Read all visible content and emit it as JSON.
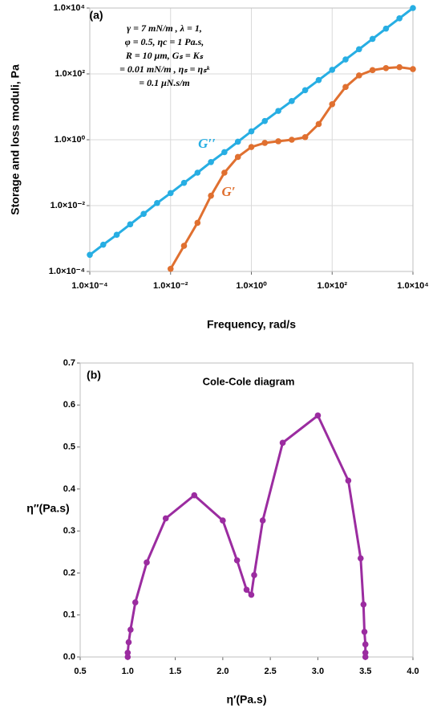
{
  "chart_data": [
    {
      "type": "line",
      "label": "(a)",
      "annotation": [
        "γ = 7 mN/m , λ = 1,",
        "φ = 0.5,  ηc = 1 Pa.s,",
        "R = 10 μm, Gₛ = Kₛ",
        "= 0.01 mN/m , ηₛ = ηₛᵏ",
        "= 0.1 μN.s/m"
      ],
      "xlabel": "Frequency, rad/s",
      "ylabel": "Storage and loss moduli, Pa",
      "xlog": true,
      "ylog": true,
      "grid": true,
      "xlim": [
        0.0001,
        10000
      ],
      "ylim": [
        0.0001,
        10000
      ],
      "xticks": [
        {
          "value": 0.0001,
          "label": "1.0×10⁻⁴"
        },
        {
          "value": 0.01,
          "label": "1.0×10⁻²"
        },
        {
          "value": 1,
          "label": "1.0×10⁰"
        },
        {
          "value": 100,
          "label": "1.0×10²"
        },
        {
          "value": 10000,
          "label": "1.0×10⁴"
        }
      ],
      "yticks": [
        {
          "value": 0.0001,
          "label": "1.0×10⁻⁴"
        },
        {
          "value": 0.01,
          "label": "1.0×10⁻²"
        },
        {
          "value": 1,
          "label": "1.0×10⁰"
        },
        {
          "value": 100,
          "label": "1.0×10²"
        },
        {
          "value": 10000,
          "label": "1.0×10⁴"
        }
      ],
      "series": [
        {
          "name": "G′′",
          "color": "#27aee3",
          "x": [
            0.0001,
            0.000215,
            0.000464,
            0.001,
            0.00215,
            0.00464,
            0.01,
            0.0215,
            0.0464,
            0.1,
            0.215,
            0.464,
            1,
            2.15,
            4.64,
            10,
            21.5,
            46.4,
            100,
            215,
            464,
            1000,
            2150,
            4640,
            10000
          ],
          "values": [
            0.00032,
            0.00065,
            0.0013,
            0.0027,
            0.0056,
            0.012,
            0.024,
            0.049,
            0.1,
            0.21,
            0.42,
            0.87,
            1.8,
            3.7,
            7.5,
            15,
            32,
            65,
            133,
            274,
            562,
            1155,
            2371,
            4870,
            10000
          ]
        },
        {
          "name": "G′",
          "color": "#e07030",
          "x": [
            0.01,
            0.0215,
            0.0464,
            0.1,
            0.215,
            0.464,
            1,
            2.15,
            4.64,
            10,
            21.5,
            46.4,
            100,
            215,
            464,
            1000,
            2150,
            4640,
            10000
          ],
          "values": [
            0.00012,
            0.0006,
            0.003,
            0.02,
            0.1,
            0.3,
            0.6,
            0.8,
            0.9,
            1.0,
            1.2,
            3,
            12,
            40,
            90,
            130,
            150,
            160,
            140
          ]
        }
      ]
    },
    {
      "type": "line",
      "label": "(b)",
      "title": "Cole-Cole diagram",
      "xlabel": "η′(Pa.s)",
      "ylabel": "η″(Pa.s)",
      "grid": false,
      "xlim": [
        0.5,
        4.0
      ],
      "ylim": [
        0,
        0.7
      ],
      "xticks": [
        0.5,
        {
          "value": 1,
          "label": "1.0"
        },
        1.5,
        {
          "value": 2,
          "label": "2.0"
        },
        2.5,
        {
          "value": 3,
          "label": "3.0"
        },
        3.5,
        {
          "value": 4,
          "label": "4.0"
        }
      ],
      "yticks": [
        {
          "value": 0,
          "label": "0.0"
        },
        0.1,
        0.2,
        0.3,
        0.4,
        0.5,
        0.6,
        0.7
      ],
      "series": [
        {
          "name": null,
          "color": "#9b2ca0",
          "x": [
            1.0,
            1.0,
            1.01,
            1.03,
            1.08,
            1.2,
            1.4,
            1.7,
            2.0,
            2.15,
            2.25,
            2.3,
            2.33,
            2.42,
            2.63,
            3.0,
            3.32,
            3.45,
            3.48,
            3.49,
            3.5,
            3.5,
            3.5
          ],
          "values": [
            0,
            0.01,
            0.035,
            0.065,
            0.13,
            0.225,
            0.33,
            0.385,
            0.325,
            0.23,
            0.16,
            0.148,
            0.195,
            0.325,
            0.51,
            0.575,
            0.42,
            0.235,
            0.125,
            0.06,
            0.03,
            0.01,
            0
          ]
        }
      ]
    }
  ]
}
